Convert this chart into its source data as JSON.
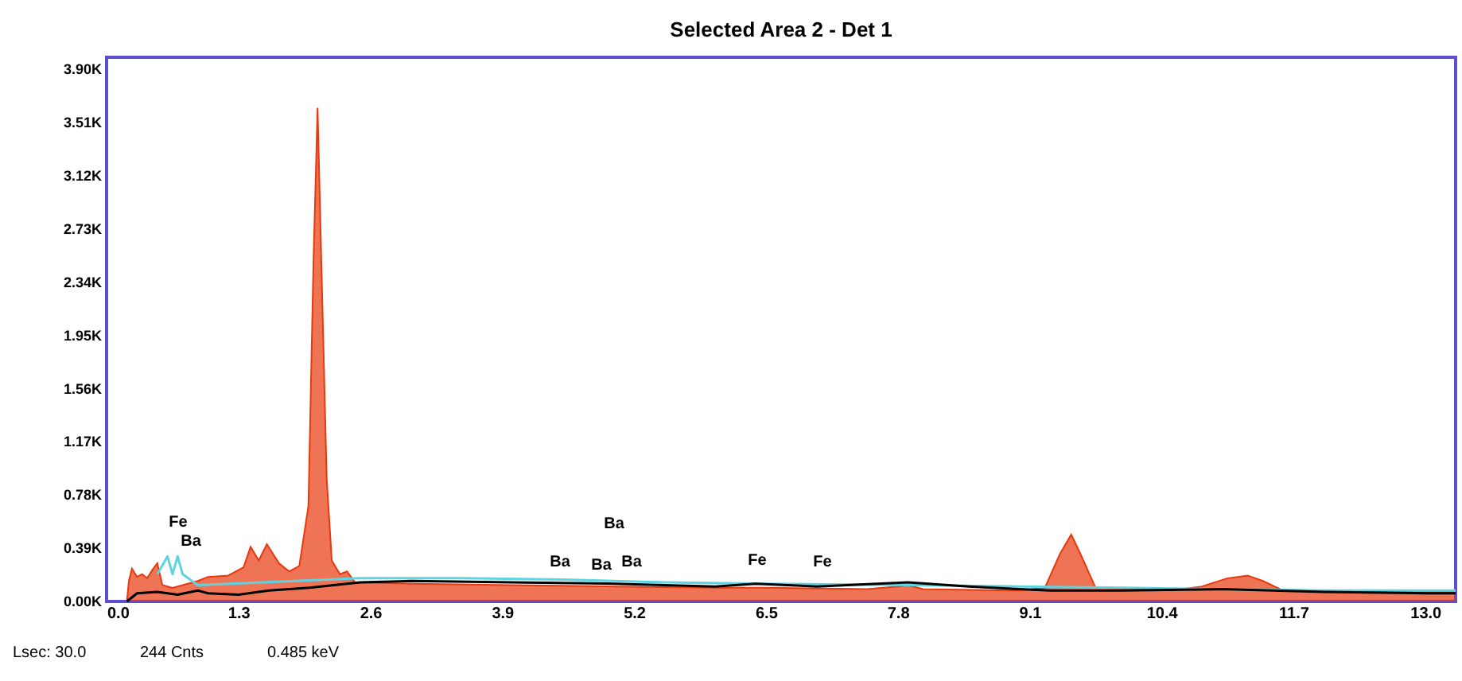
{
  "chart_data": {
    "type": "area",
    "title": "Selected Area 2 - Det 1",
    "xlim": [
      0,
      13.3
    ],
    "xticks": [
      {
        "value": 0,
        "label": "0.0"
      },
      1.3,
      2.6,
      3.9,
      5.2,
      6.5,
      7.8,
      9.1,
      10.4,
      11.7,
      {
        "value": 13,
        "label": "13.0"
      }
    ],
    "ylim": [
      0,
      3990
    ],
    "yticks": [
      {
        "value": 0,
        "label": "0.00K"
      },
      {
        "value": 390,
        "label": "0.39K"
      },
      {
        "value": 780,
        "label": "0.78K"
      },
      {
        "value": 1170,
        "label": "1.17K"
      },
      {
        "value": 1560,
        "label": "1.56K"
      },
      {
        "value": 1950,
        "label": "1.95K"
      },
      {
        "value": 2340,
        "label": "2.34K"
      },
      {
        "value": 2730,
        "label": "2.73K"
      },
      {
        "value": 3120,
        "label": "3.12K"
      },
      {
        "value": 3510,
        "label": "3.51K"
      },
      {
        "value": 3900,
        "label": "3.90K"
      }
    ],
    "grid": false,
    "legend": false,
    "series": [
      {
        "color": "#e8380d",
        "x": [
          0.2,
          0.22,
          0.25,
          0.3,
          0.35,
          0.4,
          0.45,
          0.5,
          0.55,
          0.65,
          0.8,
          0.9,
          1.0,
          1.2,
          1.35,
          1.42,
          1.5,
          1.58,
          1.7,
          1.8,
          1.9,
          1.99,
          2.04,
          2.08,
          2.12,
          2.17,
          2.22,
          2.3,
          2.37,
          2.45,
          3.0,
          4.0,
          5.0,
          6.0,
          6.5,
          7.5,
          7.8,
          7.9,
          8.05,
          9.0,
          9.25,
          9.4,
          9.51,
          9.6,
          9.75,
          10.5,
          10.8,
          11.05,
          11.25,
          11.4,
          11.6,
          12.5,
          13.0,
          13.3
        ],
        "values": [
          0,
          150,
          240,
          180,
          200,
          170,
          230,
          280,
          120,
          100,
          130,
          150,
          180,
          190,
          250,
          400,
          300,
          420,
          280,
          220,
          260,
          700,
          2500,
          3620,
          2400,
          900,
          300,
          200,
          220,
          140,
          130,
          120,
          110,
          100,
          100,
          90,
          110,
          120,
          90,
          80,
          100,
          350,
          490,
          350,
          100,
          80,
          110,
          170,
          190,
          150,
          80,
          70,
          70,
          70
        ]
      },
      {
        "type": "line",
        "color": "#5fd3e0",
        "x": [
          0.5,
          0.6,
          0.65,
          0.7,
          0.75,
          0.9,
          2.5,
          3.5,
          4.5,
          5.5,
          6.5,
          8.0,
          9.0,
          10.0,
          11.0,
          12.0,
          13.0,
          13.3
        ],
        "values": [
          200,
          330,
          200,
          330,
          200,
          120,
          170,
          170,
          160,
          140,
          130,
          120,
          110,
          100,
          90,
          80,
          80,
          80
        ]
      },
      {
        "type": "line",
        "color": "#000000",
        "x": [
          0.2,
          0.3,
          0.5,
          0.7,
          0.9,
          1.0,
          1.3,
          1.6,
          2.0,
          2.5,
          3.0,
          4.0,
          5.0,
          6.0,
          6.4,
          7.0,
          7.9,
          8.5,
          9.0,
          9.3,
          10.0,
          11.0,
          12.0,
          13.0,
          13.3
        ],
        "values": [
          0,
          60,
          70,
          50,
          80,
          60,
          50,
          80,
          100,
          140,
          150,
          140,
          130,
          110,
          130,
          110,
          140,
          110,
          90,
          80,
          80,
          90,
          70,
          60,
          60
        ]
      }
    ],
    "annotations": [
      "Fe",
      "Ba",
      "Ba",
      "Ba",
      "Ba",
      "Ba",
      "Fe",
      "Fe",
      "Lsec: 30.0",
      "244 Cnts",
      "0.485 keV"
    ]
  }
}
